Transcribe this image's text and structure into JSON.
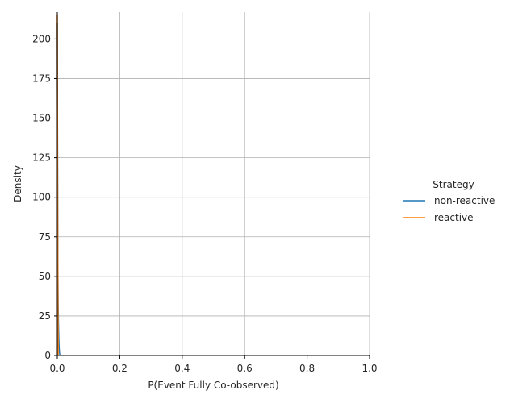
{
  "chart_data": {
    "type": "line",
    "title": "",
    "xlabel": "P(Event Fully Co-observed)",
    "ylabel": "Density",
    "xlim": [
      0.0,
      1.0
    ],
    "ylim": [
      0,
      217
    ],
    "xticks": [
      0.0,
      0.2,
      0.4,
      0.6,
      0.8,
      1.0
    ],
    "xtick_labels": [
      "0.0",
      "0.2",
      "0.4",
      "0.6",
      "0.8",
      "1.0"
    ],
    "yticks": [
      0,
      25,
      50,
      75,
      100,
      125,
      150,
      175,
      200
    ],
    "ytick_labels": [
      "0",
      "25",
      "50",
      "75",
      "100",
      "125",
      "150",
      "175",
      "200"
    ],
    "grid": true,
    "legend": {
      "title": "Strategy",
      "placement": "right"
    },
    "series": [
      {
        "name": "non-reactive",
        "color": "#1f77b4",
        "x": [
          0.0,
          0.001,
          0.002,
          0.003,
          0.004,
          0.005,
          0.006,
          0.007,
          0.008,
          0.009
        ],
        "y": [
          210,
          120,
          55,
          30,
          18,
          10,
          5,
          2,
          0.5,
          0
        ]
      },
      {
        "name": "reactive",
        "color": "#ff7f0e",
        "x": [
          0.0,
          0.0005,
          0.001,
          0.0015,
          0.002,
          0.0025,
          0.003
        ],
        "y": [
          215,
          160,
          110,
          70,
          40,
          15,
          0
        ]
      }
    ]
  }
}
